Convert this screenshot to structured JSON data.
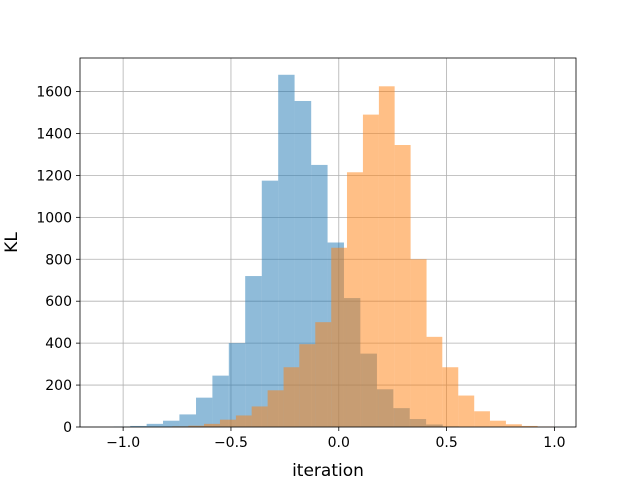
{
  "chart_data": {
    "type": "bar",
    "subtype": "overlapping-histogram",
    "title": "",
    "xlabel": "iteration",
    "ylabel": "KL",
    "xlim": [
      -1.2,
      1.1
    ],
    "ylim": [
      0,
      1760
    ],
    "xticks": [
      -1.0,
      -0.5,
      0.0,
      0.5,
      1.0
    ],
    "xtick_labels": [
      "−1.0",
      "−0.5",
      "0.0",
      "0.5",
      "1.0"
    ],
    "yticks": [
      0,
      200,
      400,
      600,
      800,
      1000,
      1200,
      1400,
      1600
    ],
    "ytick_labels": [
      "0",
      "200",
      "400",
      "600",
      "800",
      "1000",
      "1200",
      "1400",
      "1600"
    ],
    "grid": true,
    "legend": "none",
    "series": [
      {
        "color": "#1f77b4",
        "alpha": 0.5,
        "bin_edges": [
          -1.044,
          -0.967,
          -0.891,
          -0.815,
          -0.739,
          -0.662,
          -0.586,
          -0.51,
          -0.434,
          -0.357,
          -0.281,
          -0.205,
          -0.128,
          -0.052,
          0.024,
          0.1,
          0.177,
          0.253,
          0.329,
          0.405,
          0.482,
          0.558
        ],
        "values": [
          2,
          5,
          15,
          30,
          60,
          140,
          245,
          400,
          720,
          1175,
          1680,
          1555,
          1250,
          880,
          615,
          350,
          180,
          90,
          38,
          12,
          3
        ]
      },
      {
        "color": "#ff7f0e",
        "alpha": 0.5,
        "bin_edges": [
          -0.772,
          -0.698,
          -0.625,
          -0.551,
          -0.477,
          -0.404,
          -0.33,
          -0.256,
          -0.183,
          -0.109,
          -0.035,
          0.038,
          0.112,
          0.186,
          0.259,
          0.333,
          0.407,
          0.48,
          0.554,
          0.628,
          0.701,
          0.775,
          0.849,
          0.922,
          0.996
        ],
        "values": [
          3,
          6,
          15,
          35,
          55,
          98,
          175,
          285,
          395,
          500,
          855,
          1215,
          1490,
          1625,
          1345,
          800,
          430,
          285,
          150,
          75,
          30,
          13,
          5,
          2
        ]
      }
    ]
  }
}
